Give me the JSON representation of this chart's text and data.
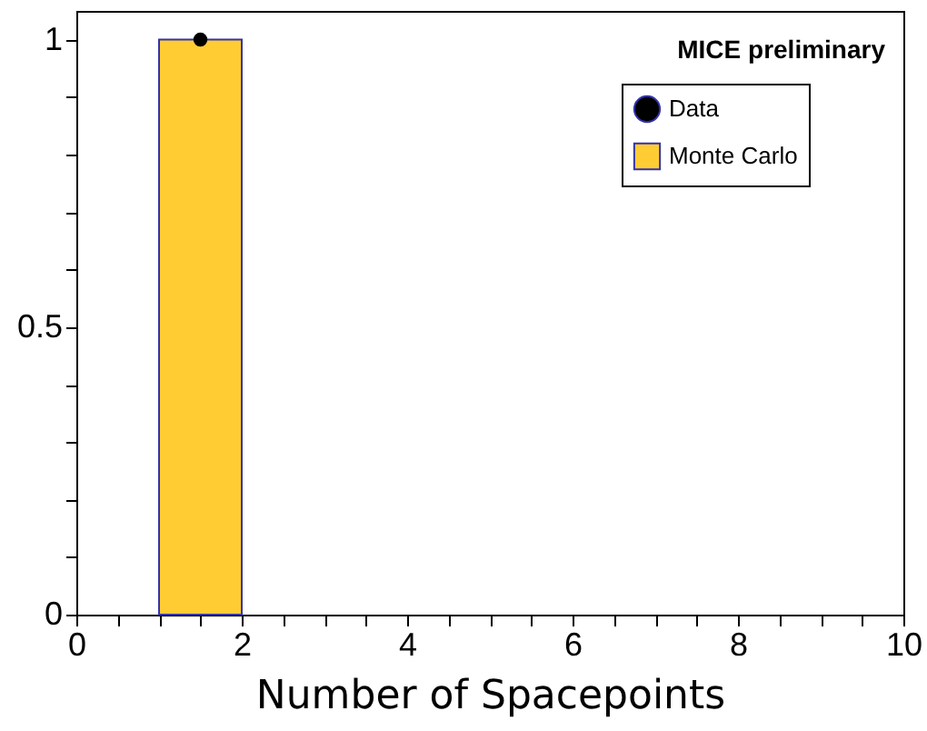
{
  "chart_data": {
    "type": "histogram",
    "xlabel": "Number of Spacepoints",
    "annotations": [
      "MICE preliminary"
    ],
    "bins": [
      0,
      1,
      2,
      3,
      4,
      5,
      6,
      7,
      8,
      9,
      10
    ],
    "series": [
      {
        "name": "Data",
        "type": "scatter",
        "color": "#000000",
        "x": [
          1.5
        ],
        "values": [
          1
        ]
      },
      {
        "name": "Monte Carlo",
        "color": "#ffcc33",
        "values": [
          0,
          1,
          0,
          0,
          0,
          0,
          0,
          0,
          0,
          0
        ]
      }
    ],
    "xlim": [
      0,
      10
    ],
    "xticks": [
      0,
      {
        "value": 0.5,
        "label": null
      },
      {
        "value": 1,
        "label": null
      },
      {
        "value": 1.5,
        "label": null
      },
      2,
      {
        "value": 2.5,
        "label": null
      },
      {
        "value": 3,
        "label": null
      },
      {
        "value": 3.5,
        "label": null
      },
      4,
      {
        "value": 4.5,
        "label": null
      },
      {
        "value": 5,
        "label": null
      },
      {
        "value": 5.5,
        "label": null
      },
      6,
      {
        "value": 6.5,
        "label": null
      },
      {
        "value": 7,
        "label": null
      },
      {
        "value": 7.5,
        "label": null
      },
      8,
      {
        "value": 8.5,
        "label": null
      },
      {
        "value": 9,
        "label": null
      },
      {
        "value": 9.5,
        "label": null
      },
      10
    ],
    "ylim": [
      0,
      1.05
    ],
    "yticks": [
      0,
      {
        "value": 0.1,
        "label": null
      },
      {
        "value": 0.2,
        "label": null
      },
      {
        "value": 0.3,
        "label": null
      },
      {
        "value": 0.4,
        "label": null
      },
      0.5,
      {
        "value": 0.6,
        "label": null
      },
      {
        "value": 0.7,
        "label": null
      },
      {
        "value": 0.8,
        "label": null
      },
      {
        "value": 0.9,
        "label": null
      },
      1
    ],
    "grid": false,
    "legend": "top right",
    "marker": "circle"
  }
}
